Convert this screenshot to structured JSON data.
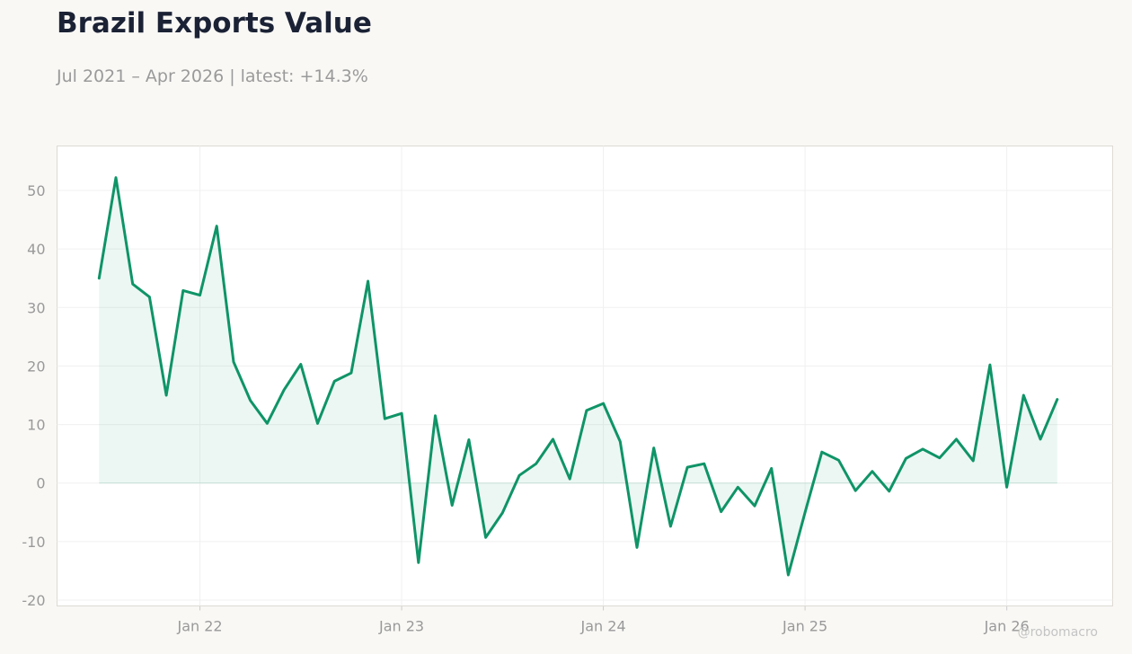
{
  "header": {
    "title": "Brazil Exports Value",
    "subtitle": "Jul 2021 – Apr 2026 | latest: +14.3%"
  },
  "watermark": "@robomacro",
  "colors": {
    "line": "#0f9467",
    "fill": "#0f9467",
    "background": "#f9f8f5",
    "plot_background": "#ffffff",
    "grid": "#f0f0f0",
    "text_muted": "#999999"
  },
  "chart_data": {
    "type": "area",
    "x_start": "2021-07",
    "x_end": "2026-04",
    "x_ticks": [
      {
        "date": "2022-01",
        "label": "Jan 22"
      },
      {
        "date": "2023-01",
        "label": "Jan 23"
      },
      {
        "date": "2024-01",
        "label": "Jan 24"
      },
      {
        "date": "2025-01",
        "label": "Jan 25"
      },
      {
        "date": "2026-01",
        "label": "Jan 26"
      }
    ],
    "y_ticks": [
      -20,
      -10,
      0,
      10,
      20,
      30,
      40,
      50
    ],
    "ylim": [
      -21,
      57.6
    ],
    "xlim": [
      "2021-04",
      "2026-07"
    ],
    "grid": true,
    "series": [
      {
        "x": [
          "2021-07",
          "2021-08",
          "2021-09",
          "2021-10",
          "2021-11",
          "2021-12",
          "2022-01",
          "2022-02",
          "2022-03",
          "2022-04",
          "2022-05",
          "2022-06",
          "2022-07",
          "2022-08",
          "2022-09",
          "2022-10",
          "2022-11",
          "2022-12",
          "2023-01",
          "2023-02",
          "2023-03",
          "2023-04",
          "2023-05",
          "2023-06",
          "2023-07",
          "2023-08",
          "2023-09",
          "2023-10",
          "2023-11",
          "2023-12",
          "2024-01",
          "2024-02",
          "2024-03",
          "2024-04",
          "2024-05",
          "2024-06",
          "2024-07",
          "2024-08",
          "2024-09",
          "2024-10",
          "2024-11",
          "2024-12",
          "2025-01",
          "2025-02",
          "2025-03",
          "2025-04",
          "2025-05",
          "2025-06",
          "2025-07",
          "2025-08",
          "2025-09",
          "2025-10",
          "2025-11",
          "2025-12",
          "2026-01",
          "2026-02",
          "2026-03",
          "2026-04"
        ],
        "values": [
          35.0,
          52.2,
          34.0,
          31.8,
          15.0,
          32.9,
          32.1,
          43.9,
          20.7,
          14.1,
          10.2,
          15.9,
          20.3,
          10.2,
          17.4,
          18.8,
          34.5,
          11.0,
          11.9,
          -13.6,
          11.5,
          -3.8,
          7.4,
          -9.3,
          -5.1,
          1.3,
          3.3,
          7.5,
          0.7,
          12.4,
          13.6,
          7.1,
          -11.0,
          6.0,
          -7.4,
          2.7,
          3.3,
          -4.9,
          -0.7,
          -3.9,
          2.5,
          -15.7,
          -5.0,
          5.3,
          3.9,
          -1.3,
          2.0,
          -1.4,
          4.2,
          5.8,
          4.3,
          7.5,
          3.8,
          20.2,
          -0.7,
          15.0,
          7.5,
          14.3
        ]
      }
    ]
  }
}
